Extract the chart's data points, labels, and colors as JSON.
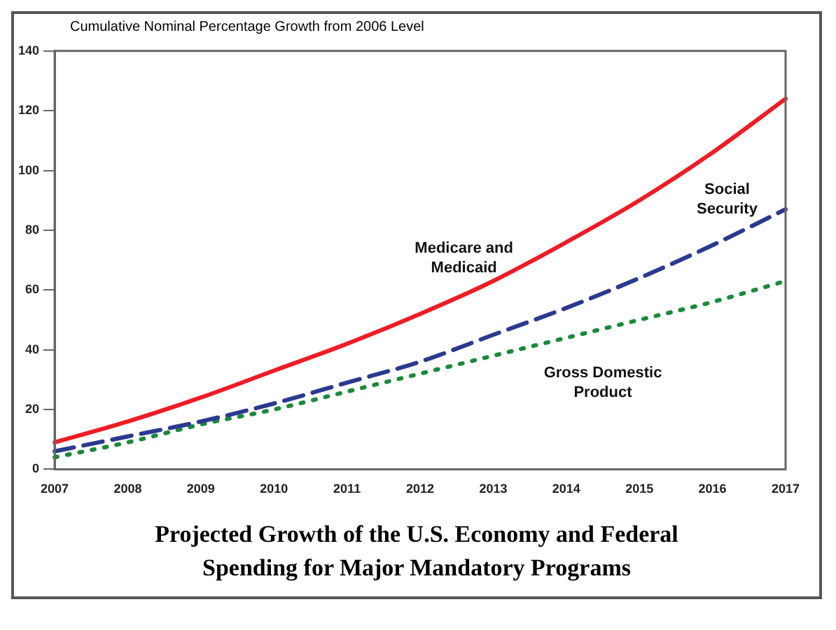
{
  "chart_data": {
    "type": "line",
    "title": "Projected Growth of the U.S. Economy and Federal Spending for Major Mandatory Programs",
    "ylabel": "Cumulative Nominal Percentage Growth from 2006 Level",
    "categories": [
      "2007",
      "2008",
      "2009",
      "2010",
      "2011",
      "2012",
      "2013",
      "2014",
      "2015",
      "2016",
      "2017"
    ],
    "series": [
      {
        "name": "Medicare and Medicaid",
        "color": "#ee1c25",
        "line_style": "solid",
        "values": [
          9,
          16,
          24,
          33,
          42,
          52,
          63,
          76,
          90,
          106,
          124
        ]
      },
      {
        "name": "Social Security",
        "color": "#2b3990",
        "line_style": "dashed",
        "values": [
          6,
          11,
          16,
          22,
          29,
          36,
          45,
          54,
          64,
          75,
          87
        ]
      },
      {
        "name": "Gross Domestic Product",
        "color": "#1a8a3a",
        "line_style": "dotted",
        "values": [
          4,
          9,
          15,
          20,
          26,
          32,
          38,
          44,
          50,
          56,
          63
        ]
      }
    ],
    "ylim": [
      0,
      140
    ],
    "yticks": [
      0,
      20,
      40,
      60,
      80,
      100,
      120,
      140
    ],
    "grid": false,
    "legend": false,
    "marker": "none"
  }
}
